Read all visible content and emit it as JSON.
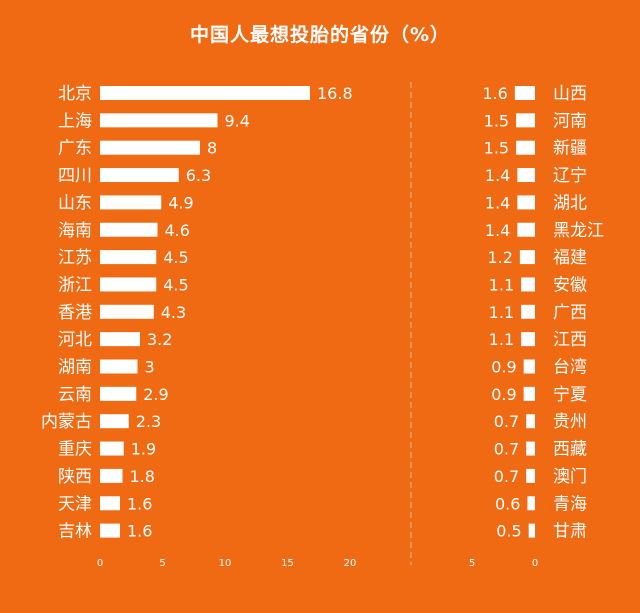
{
  "title": "中国人最想投胎的省份（%）",
  "chart_data": [
    {
      "type": "bar",
      "orientation": "horizontal",
      "categories": [
        "北京",
        "上海",
        "广东",
        "四川",
        "山东",
        "海南",
        "江苏",
        "浙江",
        "香港",
        "河北",
        "湖南",
        "云南",
        "内蒙古",
        "重庆",
        "陕西",
        "天津",
        "吉林"
      ],
      "values": [
        16.8,
        9.4,
        8,
        6.3,
        4.9,
        4.6,
        4.5,
        4.5,
        4.3,
        3.2,
        3,
        2.9,
        2.3,
        1.9,
        1.8,
        1.6,
        1.6
      ],
      "labels": [
        "16.8",
        "9.4",
        "8",
        "6.3",
        "4.9",
        "4.6",
        "4.5",
        "4.5",
        "4.3",
        "3.2",
        "3",
        "2.9",
        "2.3",
        "1.9",
        "1.8",
        "1.6",
        "1.6"
      ],
      "xlim": [
        0,
        20
      ],
      "xticks": [
        "0",
        "5",
        "10",
        "15",
        "20"
      ],
      "grid": false
    },
    {
      "type": "bar",
      "orientation": "horizontal",
      "direction": "reversed",
      "categories": [
        "山西",
        "河南",
        "新疆",
        "辽宁",
        "湖北",
        "黑龙江",
        "福建",
        "安徽",
        "广西",
        "江西",
        "台湾",
        "宁夏",
        "贵州",
        "西藏",
        "澳门",
        "青海",
        "甘肃"
      ],
      "values": [
        1.6,
        1.5,
        1.5,
        1.4,
        1.4,
        1.4,
        1.2,
        1.1,
        1.1,
        1.1,
        0.9,
        0.9,
        0.7,
        0.7,
        0.7,
        0.6,
        0.5
      ],
      "labels": [
        "1.6",
        "1.5",
        "1.5",
        "1.4",
        "1.4",
        "1.4",
        "1.2",
        "1.1",
        "1.1",
        "1.1",
        "0.9",
        "0.9",
        "0.7",
        "0.7",
        "0.7",
        "0.6",
        "0.5"
      ],
      "xlim": [
        0,
        5
      ],
      "xticks": [
        "5",
        "0"
      ],
      "grid": false
    }
  ]
}
